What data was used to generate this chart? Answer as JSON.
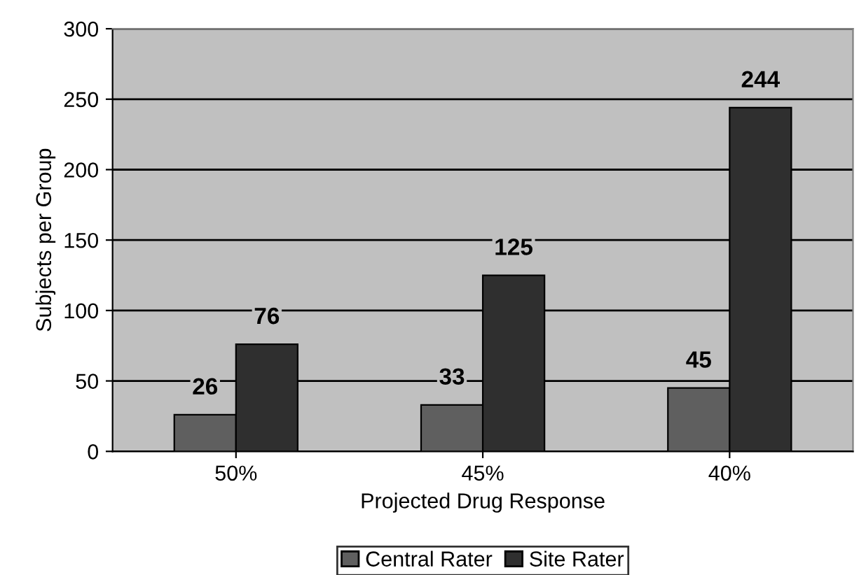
{
  "chart_data": {
    "type": "bar",
    "xlabel": "Projected Drug Response",
    "ylabel": "Subjects per Group",
    "categories": [
      "50%",
      "45%",
      "40%"
    ],
    "series": [
      {
        "name": "Central Rater",
        "color": "#5f5f5f",
        "values": [
          26,
          33,
          45
        ]
      },
      {
        "name": "Site Rater",
        "color": "#2f2f2f",
        "values": [
          76,
          125,
          244
        ]
      }
    ],
    "ylim": [
      0,
      300
    ],
    "yticks": [
      0,
      50,
      100,
      150,
      200,
      250,
      300
    ],
    "grid": "y",
    "legend": "bottom",
    "data_labels": true
  }
}
